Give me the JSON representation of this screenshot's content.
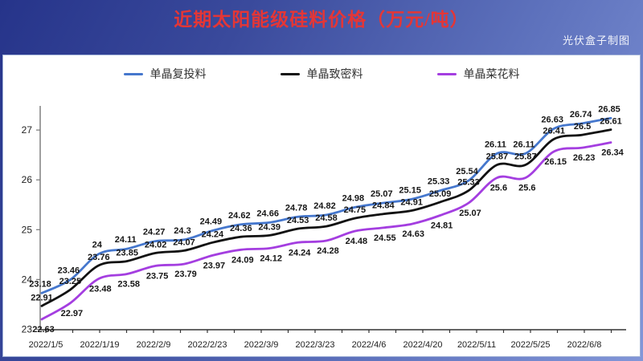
{
  "header": {
    "title": "近期太阳能级硅料价格（万元/吨）",
    "watermark": "光伏盒子制图"
  },
  "legend": [
    {
      "label": "单晶复投料",
      "color": "#4577cd"
    },
    {
      "label": "单晶致密料",
      "color": "#111111"
    },
    {
      "label": "单晶菜花料",
      "color": "#a43ee0"
    }
  ],
  "chart_data": {
    "type": "line",
    "title": "近期太阳能级硅料价格（万元/吨）",
    "x_tick_labels": [
      "2022/1/5",
      "2022/1/19",
      "2022/2/9",
      "2022/2/23",
      "2022/3/9",
      "2022/3/23",
      "2022/4/6",
      "2022/4/20",
      "2022/5/11",
      "2022/5/25",
      "2022/6/8"
    ],
    "y_ticks": [
      23,
      24,
      25,
      26,
      27
    ],
    "ylim": [
      23,
      27
    ],
    "grid": false,
    "legend_position": "top",
    "points_per_x_label": 2,
    "series": [
      {
        "name": "单晶复投料",
        "color": "#4577cd",
        "values": [
          23.18,
          23.46,
          24,
          24.11,
          24.27,
          24.3,
          24.49,
          24.62,
          24.66,
          24.78,
          24.82,
          24.98,
          25.07,
          25.15,
          25.33,
          25.54,
          26.11,
          26.11,
          26.63,
          26.74,
          26.85
        ]
      },
      {
        "name": "单晶致密料",
        "color": "#111111",
        "values": [
          22.91,
          23.25,
          23.76,
          23.85,
          24.02,
          24.07,
          24.24,
          24.36,
          24.39,
          24.53,
          24.58,
          24.75,
          24.84,
          24.91,
          25.09,
          25.33,
          25.87,
          25.87,
          26.41,
          26.5,
          26.61
        ]
      },
      {
        "name": "单晶菜花料",
        "color": "#a43ee0",
        "values": [
          22.63,
          22.97,
          23.48,
          23.58,
          23.75,
          23.79,
          23.97,
          24.09,
          24.12,
          24.24,
          24.28,
          24.48,
          24.55,
          24.63,
          24.81,
          25.07,
          25.6,
          25.6,
          26.15,
          26.23,
          26.34
        ]
      }
    ]
  }
}
